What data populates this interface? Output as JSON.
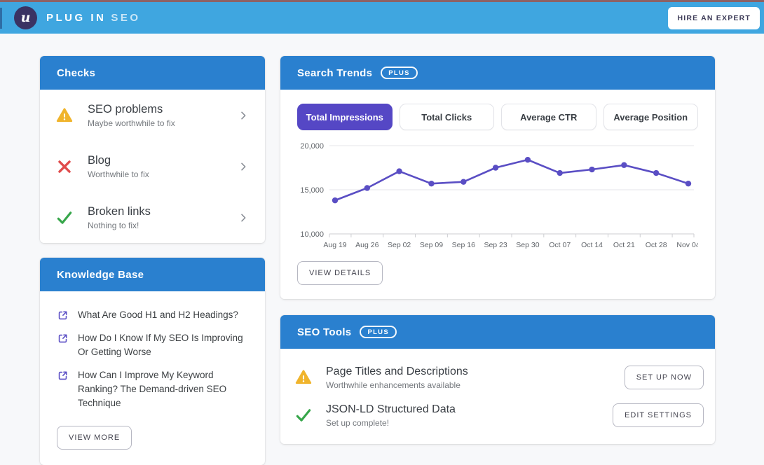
{
  "header": {
    "logo_glyph": "u",
    "logo_text_bold": "PLUG IN",
    "logo_text_light": "SEO",
    "hire_button": "HIRE AN EXPERT"
  },
  "checks": {
    "title": "Checks",
    "items": [
      {
        "icon": "warning-icon",
        "title": "SEO problems",
        "subtitle": "Maybe worthwhile to fix"
      },
      {
        "icon": "error-icon",
        "title": "Blog",
        "subtitle": "Worthwhile to fix"
      },
      {
        "icon": "success-icon",
        "title": "Broken links",
        "subtitle": "Nothing to fix!"
      }
    ]
  },
  "knowledge_base": {
    "title": "Knowledge Base",
    "links": [
      "What Are Good H1 and H2 Headings?",
      "How Do I Know If My SEO Is Improving Or Getting Worse",
      "How Can I Improve My Keyword Ranking? The Demand-driven SEO Technique"
    ],
    "view_more": "VIEW MORE"
  },
  "search_trends": {
    "title": "Search Trends",
    "badge": "PLUS",
    "tabs": [
      {
        "label": "Total Impressions",
        "active": true
      },
      {
        "label": "Total Clicks",
        "active": false
      },
      {
        "label": "Average CTR",
        "active": false
      },
      {
        "label": "Average Position",
        "active": false
      }
    ],
    "view_details": "VIEW DETAILS"
  },
  "seo_tools": {
    "title": "SEO Tools",
    "badge": "PLUS",
    "rows": [
      {
        "icon": "warning-icon",
        "title": "Page Titles and Descriptions",
        "subtitle": "Worthwhile enhancements available",
        "button": "SET UP NOW"
      },
      {
        "icon": "success-icon",
        "title": "JSON-LD Structured Data",
        "subtitle": "Set up complete!",
        "button": "EDIT SETTINGS"
      }
    ]
  },
  "chart_data": {
    "type": "line",
    "title": "Total Impressions",
    "x": [
      "Aug 19",
      "Aug 26",
      "Sep 02",
      "Sep 09",
      "Sep 16",
      "Sep 23",
      "Sep 30",
      "Oct 07",
      "Oct 14",
      "Oct 21",
      "Oct 28",
      "Nov 04"
    ],
    "series": [
      {
        "name": "Total Impressions",
        "values": [
          13800,
          15200,
          17100,
          15700,
          15900,
          17500,
          18400,
          16900,
          17300,
          17800,
          16900,
          15700
        ]
      }
    ],
    "ylim": [
      10000,
      20000
    ],
    "yticks": [
      10000,
      15000,
      20000
    ],
    "grid": true,
    "legend": "none",
    "line_color": "#5a4ec4"
  },
  "colors": {
    "topbar_blue": "#3fa6e0",
    "top_strip": "#8d6265",
    "card_header_blue": "#2a80cf",
    "accent_purple": "#5547c5",
    "chart_line": "#5a4ec4",
    "warning_amber": "#f0b42c",
    "error_red": "#e04b4b",
    "success_green": "#36a64a",
    "link_purple": "#5b4fc5"
  }
}
